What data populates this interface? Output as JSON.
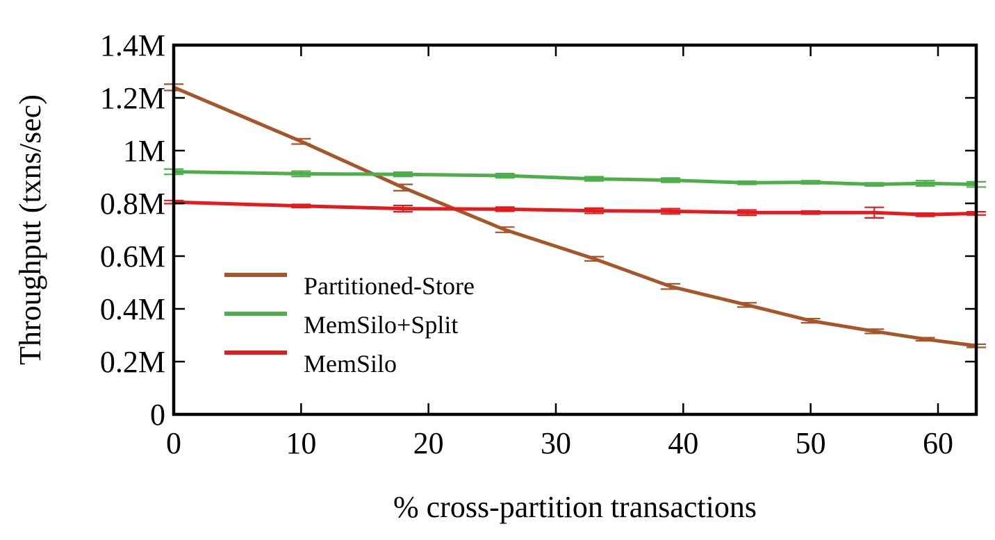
{
  "chart_data": {
    "type": "line",
    "title": "",
    "xlabel": "% cross-partition transactions",
    "ylabel": "Throughput (txns/sec)",
    "xlim": [
      0,
      63
    ],
    "ylim": [
      0,
      1400000
    ],
    "x_ticks": [
      0,
      10,
      20,
      30,
      40,
      50,
      60
    ],
    "x_tick_labels": [
      "0",
      "10",
      "20",
      "30",
      "40",
      "50",
      "60"
    ],
    "y_ticks": [
      0,
      200000,
      400000,
      600000,
      800000,
      1000000,
      1200000,
      1400000
    ],
    "y_tick_labels": [
      "0",
      "0.2M",
      "0.4M",
      "0.6M",
      "0.8M",
      "1M",
      "1.2M",
      "1.4M"
    ],
    "grid": false,
    "legend_position": "center-left",
    "series": [
      {
        "name": "Partitioned-Store",
        "color": "#a65628",
        "x": [
          0,
          10,
          18,
          26,
          33,
          39,
          45,
          50,
          55,
          59,
          63
        ],
        "y": [
          1240000,
          1035000,
          860000,
          700000,
          590000,
          485000,
          415000,
          355000,
          315000,
          285000,
          260000
        ],
        "err": [
          12000,
          10000,
          12000,
          10000,
          8000,
          10000,
          8000,
          8000,
          8000,
          6000,
          6000
        ]
      },
      {
        "name": "MemSilo+Split",
        "color": "#4daf4a",
        "x": [
          0,
          10,
          18,
          26,
          33,
          39,
          45,
          50,
          55,
          59,
          63
        ],
        "y": [
          920000,
          912000,
          910000,
          905000,
          893000,
          888000,
          878000,
          880000,
          872000,
          876000,
          872000
        ],
        "err": [
          10000,
          10000,
          8000,
          8000,
          8000,
          8000,
          6000,
          6000,
          6000,
          10000,
          10000
        ]
      },
      {
        "name": "MemSilo",
        "color": "#e41a1c",
        "x": [
          0,
          10,
          18,
          26,
          33,
          39,
          45,
          50,
          55,
          59,
          63
        ],
        "y": [
          805000,
          790000,
          780000,
          778000,
          772000,
          770000,
          765000,
          765000,
          765000,
          757000,
          762000
        ],
        "err": [
          6000,
          6000,
          12000,
          8000,
          10000,
          10000,
          10000,
          6000,
          20000,
          6000,
          6000
        ]
      }
    ]
  }
}
